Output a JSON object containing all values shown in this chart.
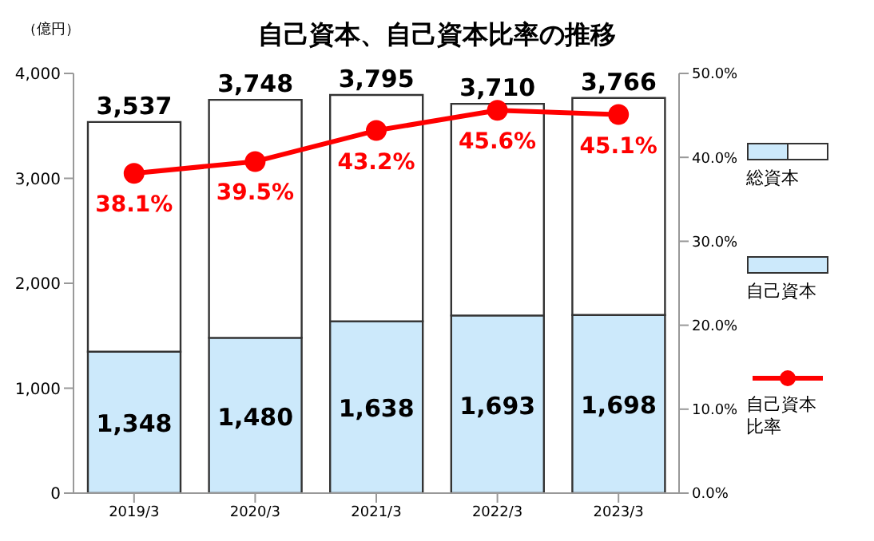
{
  "chart_data": {
    "type": "bar",
    "title": "自己資本、自己資本比率の推移",
    "ylabel": "（億円）",
    "categories": [
      "2019/3",
      "2020/3",
      "2021/3",
      "2022/3",
      "2023/3"
    ],
    "stacked": true,
    "series": [
      {
        "name": "自己資本",
        "color": "#cce9fb",
        "values": [
          1348,
          1480,
          1638,
          1693,
          1698
        ],
        "value_labels": [
          "1,348",
          "1,480",
          "1,638",
          "1,693",
          "1,698"
        ]
      },
      {
        "name": "総資本",
        "color": "#ffffff",
        "values": [
          2189,
          2268,
          2157,
          2017,
          2068
        ]
      },
      {
        "name": "自己資本比率",
        "type": "line",
        "axis": "y2",
        "color": "#ff0000",
        "values": [
          38.1,
          39.5,
          43.2,
          45.6,
          45.1
        ],
        "value_labels": [
          "38.1%",
          "39.5%",
          "43.2%",
          "45.6%",
          "45.1%"
        ]
      }
    ],
    "totals": [
      "3,537",
      "3,748",
      "3,795",
      "3,710",
      "3,766"
    ],
    "ylim": [
      0,
      4000
    ],
    "yticks": [
      0,
      {
        "value": 1000,
        "label": "1,000"
      },
      {
        "value": 2000,
        "label": "2,000"
      },
      {
        "value": 3000,
        "label": "3,000"
      },
      {
        "value": 4000,
        "label": "4,000"
      }
    ],
    "y2lim": [
      0,
      50
    ],
    "y2ticks": [
      {
        "value": 0,
        "label": "0.0%"
      },
      {
        "value": 10,
        "label": "10.0%"
      },
      {
        "value": 20,
        "label": "20.0%"
      },
      {
        "value": 30,
        "label": "30.0%"
      },
      {
        "value": 40,
        "label": "40.0%"
      },
      {
        "value": 50,
        "label": "50.0%"
      }
    ],
    "grid": false,
    "legend": "right",
    "marker": "circle",
    "line_style": "solid"
  }
}
